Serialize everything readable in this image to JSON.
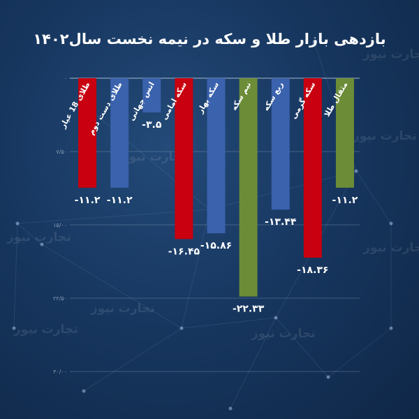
{
  "title": "بازدهی بازار طلا و سکه در نیمه نخست سال۱۴۰۲",
  "watermark": "تجارت نیوز",
  "colors": {
    "red": "#c8000f",
    "blue": "#3a62ad",
    "green": "#6c8c37",
    "axis": "#b9c6d8"
  },
  "chart_data": {
    "type": "bar",
    "categories": [
      "طلای 18 عیار",
      "طلای دست دوم",
      "انس جهانی",
      "سکه امامی",
      "سکه بهار",
      "نیم سکه",
      "ربع سکه",
      "سکه گرمی",
      "مثقال طلا"
    ],
    "values": [
      -11.2,
      -11.2,
      -3.5,
      -16.45,
      -15.86,
      -22.33,
      -13.44,
      -18.36,
      -11.2
    ],
    "value_labels": [
      "-۱۱.۲",
      "-۱۱.۲",
      "-۳.۵",
      "-۱۶.۴۵",
      "-۱۵.۸۶",
      "-۲۲.۳۳",
      "-۱۳.۴۴",
      "-۱۸.۳۶",
      "-۱۱.۲"
    ],
    "bar_colors": [
      "red",
      "blue",
      "blue",
      "red",
      "blue",
      "green",
      "blue",
      "red",
      "green"
    ],
    "ylim": [
      -30,
      0
    ],
    "yticks": [
      0,
      -7.5,
      -15,
      -22.5,
      -30
    ],
    "ytick_labels": [
      "۰",
      "۷/۵۰",
      "۱۵/۰۰",
      "۲۲/۵۰",
      "۳۰/۰۰"
    ],
    "grid": true,
    "xlabel": "",
    "ylabel": ""
  }
}
